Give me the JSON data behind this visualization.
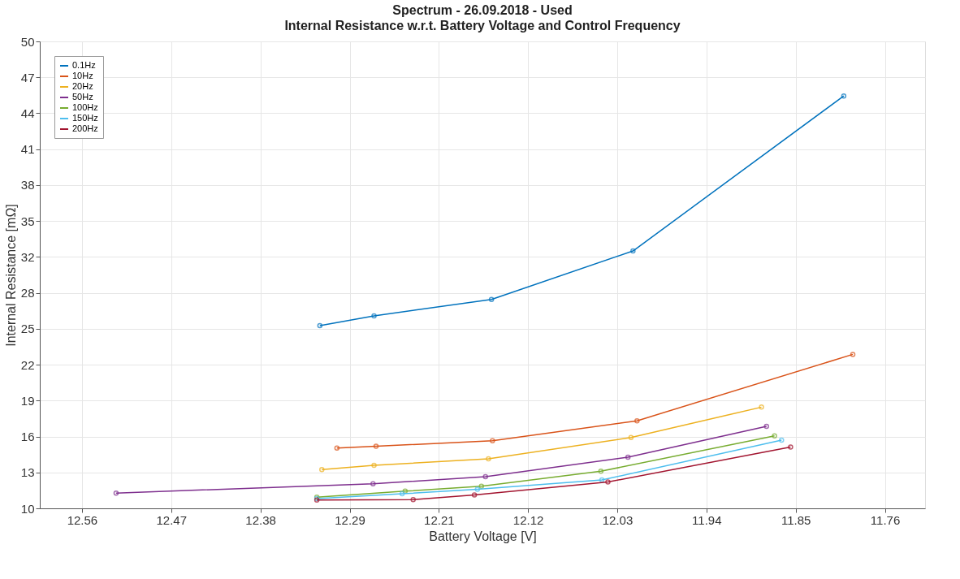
{
  "chart_data": {
    "type": "line",
    "title": "Spectrum - 26.09.2018 - Used",
    "subtitle": "Internal Resistance w.r.t. Battery Voltage and Control Frequency",
    "xlabel": "Battery Voltage [V]",
    "ylabel": "Internal Resistance [mΩ]",
    "xlim": [
      12.603,
      11.721
    ],
    "xticks": [
      {
        "value": 12.561,
        "label": "12.56"
      },
      {
        "value": 12.4721,
        "label": "12.47"
      },
      {
        "value": 12.3832,
        "label": "12.38"
      },
      {
        "value": 12.2943,
        "label": "12.29"
      },
      {
        "value": 12.2054,
        "label": "12.21"
      },
      {
        "value": 12.1166,
        "label": "12.12"
      },
      {
        "value": 12.0277,
        "label": "12.03"
      },
      {
        "value": 11.9388,
        "label": "11.94"
      },
      {
        "value": 11.8499,
        "label": "11.85"
      },
      {
        "value": 11.761,
        "label": "11.76"
      }
    ],
    "ylim": [
      10,
      50
    ],
    "yticks": [
      10,
      {
        "value": 13.077,
        "label": "13"
      },
      {
        "value": 16.154,
        "label": "16"
      },
      {
        "value": 19.231,
        "label": "19"
      },
      {
        "value": 22.308,
        "label": "22"
      },
      {
        "value": 25.385,
        "label": "25"
      },
      {
        "value": 28.462,
        "label": "28"
      },
      {
        "value": 31.538,
        "label": "32"
      },
      {
        "value": 34.615,
        "label": "35"
      },
      {
        "value": 37.692,
        "label": "38"
      },
      {
        "value": 40.769,
        "label": "41"
      },
      {
        "value": 43.846,
        "label": "44"
      },
      {
        "value": 46.923,
        "label": "47"
      },
      50
    ],
    "grid": true,
    "legend": "top left",
    "marker": "circle",
    "line_style": "solid",
    "series": [
      {
        "name": "0.1Hz",
        "color": "#0072bd",
        "x": [
          12.324,
          12.27,
          12.153,
          12.012,
          11.802
        ],
        "values": [
          25.65,
          26.49,
          27.9,
          32.05,
          45.33
        ]
      },
      {
        "name": "10Hz",
        "color": "#d95319",
        "x": [
          12.307,
          12.268,
          12.152,
          12.008,
          11.793
        ],
        "values": [
          15.16,
          15.32,
          15.79,
          17.5,
          23.19
        ]
      },
      {
        "name": "20Hz",
        "color": "#edb120",
        "x": [
          12.322,
          12.27,
          12.156,
          12.014,
          11.884
        ],
        "values": [
          13.33,
          13.68,
          14.25,
          16.07,
          18.67
        ]
      },
      {
        "name": "50Hz",
        "color": "#7e2f8e",
        "x": [
          12.527,
          12.271,
          12.159,
          12.017,
          11.879
        ],
        "values": [
          11.31,
          12.11,
          12.71,
          14.39,
          17.02
        ]
      },
      {
        "name": "100Hz",
        "color": "#77ac30",
        "x": [
          12.327,
          12.239,
          12.163,
          12.044,
          11.871
        ],
        "values": [
          10.96,
          11.47,
          11.9,
          13.18,
          16.21
        ]
      },
      {
        "name": "150Hz",
        "color": "#4dbeee",
        "x": [
          12.327,
          12.242,
          12.167,
          12.043,
          11.864
        ],
        "values": [
          10.83,
          11.25,
          11.64,
          12.43,
          15.84
        ]
      },
      {
        "name": "200Hz",
        "color": "#a2142f",
        "x": [
          12.327,
          12.231,
          12.17,
          12.037,
          11.855
        ],
        "values": [
          10.72,
          10.75,
          11.14,
          12.26,
          15.25
        ]
      }
    ]
  }
}
